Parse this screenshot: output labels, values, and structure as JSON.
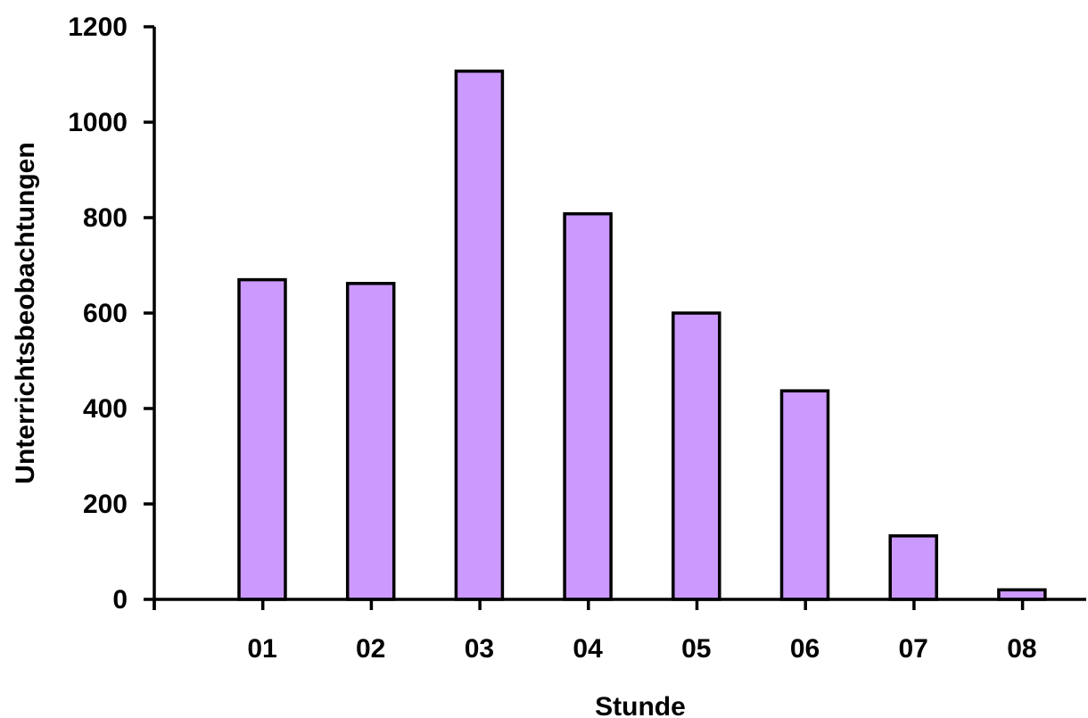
{
  "chart_data": {
    "type": "bar",
    "categories": [
      "01",
      "02",
      "03",
      "04",
      "05",
      "06",
      "07",
      "08"
    ],
    "values": [
      670,
      662,
      1107,
      808,
      600,
      437,
      133,
      20
    ],
    "title": "",
    "xlabel": "Stunde",
    "ylabel": "Unterrichtsbeobachtungen",
    "ylim": [
      0,
      1200
    ],
    "yticks": [
      0,
      200,
      400,
      600,
      800,
      1000,
      1200
    ],
    "grid": false,
    "legend": "none",
    "colors": {
      "bar_fill": "#cc99ff",
      "bar_stroke": "#000000",
      "axis": "#000000"
    }
  }
}
